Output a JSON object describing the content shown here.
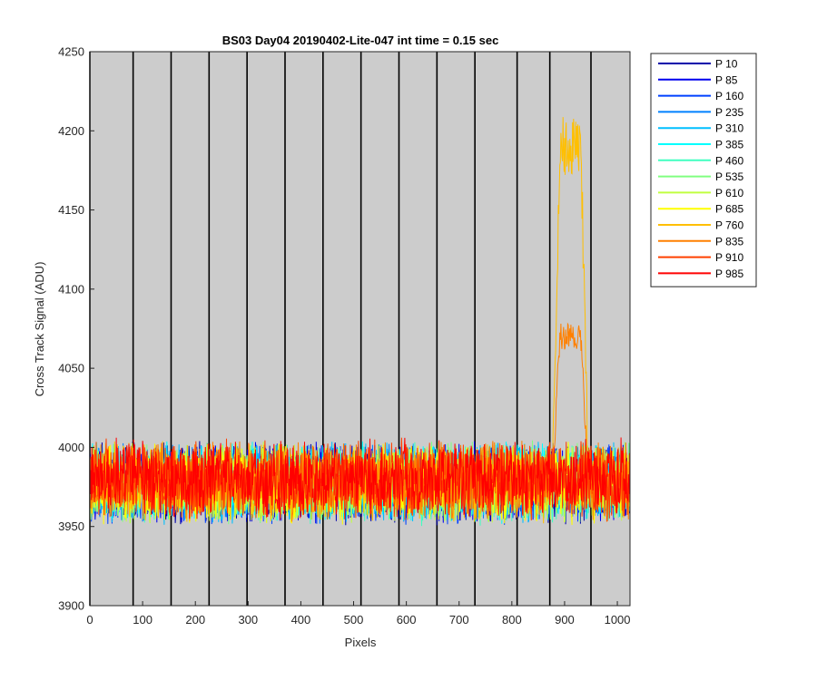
{
  "chart_data": {
    "type": "line",
    "title": "BS03 Day04 20190402-Lite-047 int time = 0.15 sec",
    "xlabel": "Pixels",
    "ylabel": "Cross Track Signal (ADU)",
    "xlim": [
      0,
      1024
    ],
    "ylim": [
      3900,
      4250
    ],
    "xticks": [
      0,
      100,
      200,
      300,
      400,
      500,
      600,
      700,
      800,
      900,
      1000
    ],
    "yticks": [
      3900,
      3950,
      4000,
      4050,
      4100,
      4150,
      4200,
      4250
    ],
    "vertical_lines_x": [
      0,
      82,
      154,
      226,
      298,
      370,
      442,
      514,
      586,
      658,
      730,
      810,
      872,
      950
    ],
    "background": "#cccccc",
    "grid": false,
    "legend_placement": "outside-right",
    "noise_model": {
      "baseline": 3978,
      "noise_span": 40,
      "description_values": "each series fluctuates around ~3978 ADU between ~3950 and ~4010"
    },
    "series": [
      {
        "name": "P 10",
        "color": "#0000aa",
        "baseline": 3977
      },
      {
        "name": "P 85",
        "color": "#0000ee",
        "baseline": 3978
      },
      {
        "name": "P 160",
        "color": "#0040ff",
        "baseline": 3977
      },
      {
        "name": "P 235",
        "color": "#0080ff",
        "baseline": 3978
      },
      {
        "name": "P 310",
        "color": "#00bfff",
        "baseline": 3977
      },
      {
        "name": "P 385",
        "color": "#00ffff",
        "baseline": 3978
      },
      {
        "name": "P 460",
        "color": "#40ffc0",
        "baseline": 3977
      },
      {
        "name": "P 535",
        "color": "#80ff80",
        "baseline": 3978
      },
      {
        "name": "P 610",
        "color": "#c0ff40",
        "baseline": 3978
      },
      {
        "name": "P 685",
        "color": "#ffff00",
        "baseline": 3977
      },
      {
        "name": "P 760",
        "color": "#ffbf00",
        "baseline": 3978,
        "bump": {
          "x_start": 877,
          "x_end": 945,
          "peak": 4190
        }
      },
      {
        "name": "P 835",
        "color": "#ff8000",
        "baseline": 3979,
        "bump": {
          "x_start": 877,
          "x_end": 945,
          "peak": 4070
        }
      },
      {
        "name": "P 910",
        "color": "#ff4000",
        "baseline": 3980
      },
      {
        "name": "P 985",
        "color": "#ff0000",
        "baseline": 3980
      }
    ]
  }
}
